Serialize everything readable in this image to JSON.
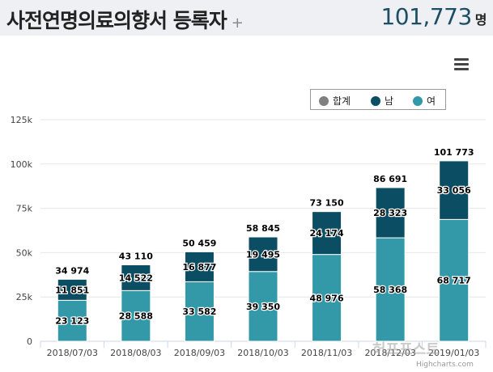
{
  "header": {
    "title": "사전연명의료의향서 등록자",
    "plus": "+",
    "total": "101,773",
    "unit": "명"
  },
  "menu_icon": "hamburger-menu-icon",
  "legend": [
    {
      "label": "합계",
      "color": "#808080"
    },
    {
      "label": "남",
      "color": "#0b4d63"
    },
    {
      "label": "여",
      "color": "#3399a8"
    }
  ],
  "watermark": "허프포스트",
  "credits": "Highcharts.com",
  "chart_data": {
    "type": "bar",
    "stacked": true,
    "categories": [
      "2018/07/03",
      "2018/08/03",
      "2018/09/03",
      "2018/10/03",
      "2018/11/03",
      "2018/12/03",
      "2019/01/03"
    ],
    "series": [
      {
        "name": "남",
        "color": "#0b4d63",
        "values": [
          11851,
          14522,
          16877,
          19495,
          24174,
          28323,
          33056
        ]
      },
      {
        "name": "여",
        "color": "#3399a8",
        "values": [
          23123,
          28588,
          33582,
          39350,
          48976,
          58368,
          68717
        ]
      }
    ],
    "totals": [
      34974,
      43110,
      50459,
      58845,
      73150,
      86691,
      101773
    ],
    "total_labels": [
      "34 974",
      "43 110",
      "50 459",
      "58 845",
      "73 150",
      "86 691",
      "101 773"
    ],
    "male_labels": [
      "11 851",
      "14 522",
      "16 877",
      "19 495",
      "24 174",
      "28 323",
      "33 056"
    ],
    "female_labels": [
      "23 123",
      "28 588",
      "33 582",
      "39 350",
      "48 976",
      "58 368",
      "68 717"
    ],
    "y_ticks": [
      "0",
      "25k",
      "50k",
      "75k",
      "100k",
      "125k"
    ],
    "y_tick_values": [
      0,
      25000,
      50000,
      75000,
      100000,
      125000
    ],
    "ylim": [
      0,
      125000
    ],
    "grid": true,
    "legend_position": "top-right"
  }
}
